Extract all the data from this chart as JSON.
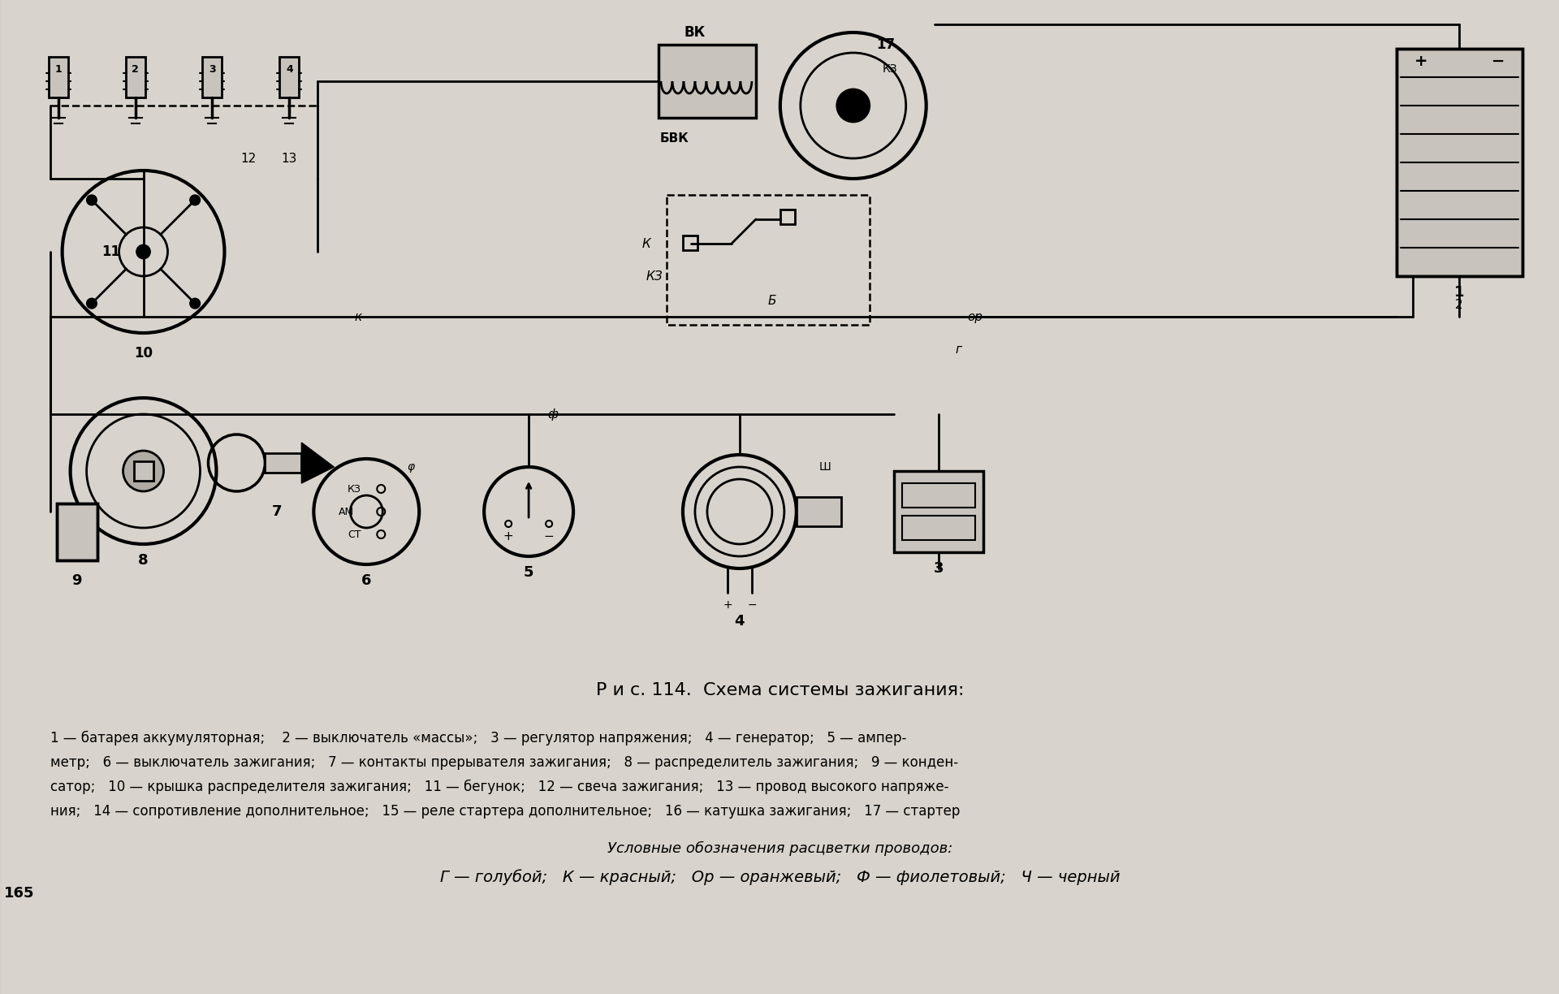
{
  "bg_color": "#d4cfc8",
  "title": "Р и с. 114.  Схема системы зажигания:",
  "caption_line1": "1 — батарея аккумуляторная;    2 — выключатель «массы»;   3 — регулятор напряжения;   4 — генератор;   5 — ампер-",
  "caption_line2": "метр;   6 — выключатель зажигания;   7 — контакты прерывателя зажигания;   8 — распределитель зажигания;   9 — конден-",
  "caption_line3": "сатор;   10 — крышка распределителя зажигания;   11 — бегунок;   12 — свеча зажигания;   13 — провод высокого напряже-",
  "caption_line4": "ния;   14 — сопротивление дополнительное;   15 — реле стартера дополнительное;   16 — катушка зажигания;   17 — стартер",
  "legend_title": "Условные обозначения расцветки проводов:",
  "legend_line": "Г — голубой;   К — красный;   Ор — оранжевый;   Ф — фиолетовый;   Ч — черный",
  "page_num": "165"
}
